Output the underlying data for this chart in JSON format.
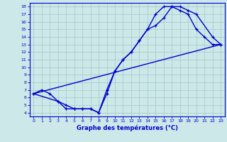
{
  "title": "Graphe des températures (°C)",
  "bg_color": "#cce8e8",
  "grid_color": "#aacccc",
  "line_color": "#0000cc",
  "xlim": [
    -0.5,
    23.5
  ],
  "ylim": [
    3.5,
    18.5
  ],
  "xticks": [
    0,
    1,
    2,
    3,
    4,
    5,
    6,
    7,
    8,
    9,
    10,
    11,
    12,
    13,
    14,
    15,
    16,
    17,
    18,
    19,
    20,
    21,
    22,
    23
  ],
  "yticks": [
    4,
    5,
    6,
    7,
    8,
    9,
    10,
    11,
    12,
    13,
    14,
    15,
    16,
    17,
    18
  ],
  "line1_x": [
    0,
    1,
    2,
    3,
    4,
    5,
    6,
    7,
    8,
    9,
    10,
    11,
    12,
    13,
    14,
    15,
    16,
    17,
    18,
    19,
    20,
    21,
    22,
    23
  ],
  "line1_y": [
    6.5,
    7.0,
    6.5,
    5.5,
    4.5,
    4.5,
    4.5,
    4.5,
    4.0,
    6.5,
    9.5,
    11.0,
    12.0,
    13.5,
    15.0,
    17.0,
    18.0,
    18.0,
    17.5,
    17.0,
    15.0,
    14.0,
    13.0,
    13.0
  ],
  "line2_x": [
    0,
    3,
    4,
    5,
    6,
    7,
    8,
    9,
    10,
    11,
    12,
    13,
    14,
    15,
    16,
    17,
    18,
    19,
    20,
    22,
    23
  ],
  "line2_y": [
    6.5,
    5.5,
    5.0,
    4.5,
    4.5,
    4.5,
    4.0,
    7.0,
    9.5,
    11.0,
    12.0,
    13.5,
    15.0,
    15.5,
    16.5,
    18.0,
    18.0,
    17.5,
    17.0,
    14.0,
    13.0
  ],
  "line3_x": [
    0,
    23
  ],
  "line3_y": [
    6.5,
    13.0
  ],
  "xlabel_fontsize": 6.0,
  "tick_fontsize": 4.5
}
